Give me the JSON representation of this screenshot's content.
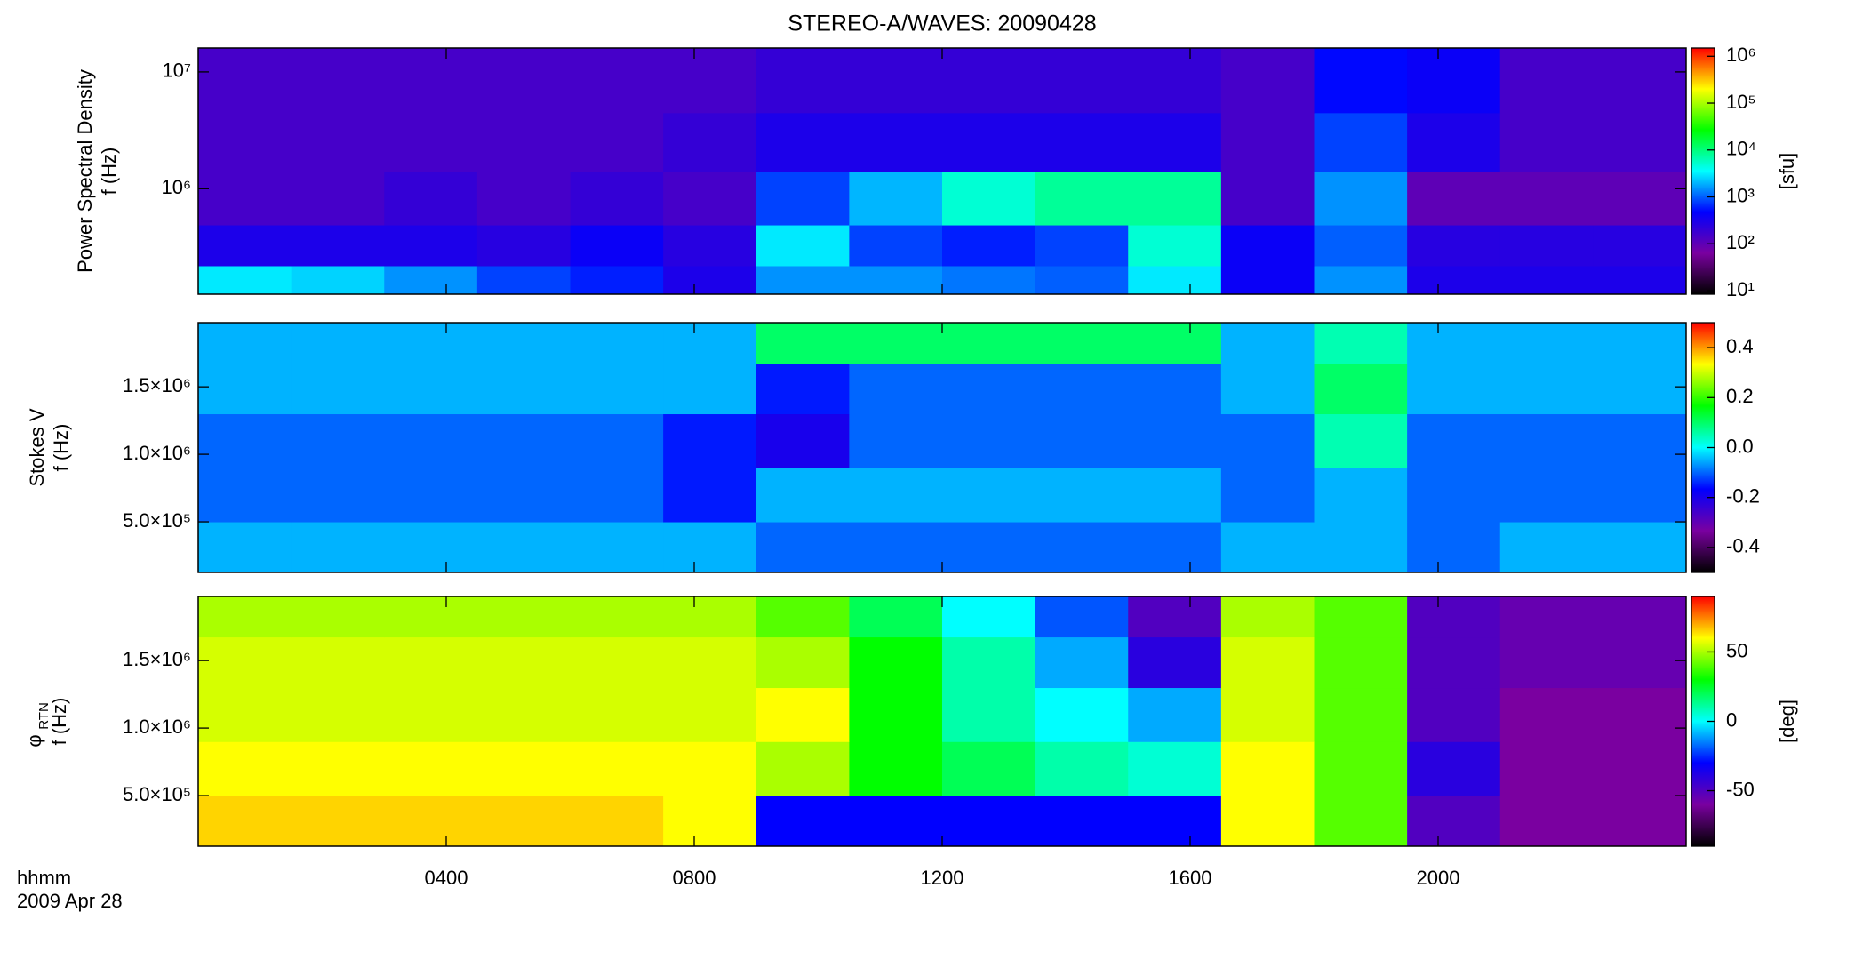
{
  "chart_data": [
    {
      "type": "heatmap",
      "title": "STEREO-A/WAVES: 20090428",
      "ylabel": "Power Spectral Density",
      "ylabel2": "f (Hz)",
      "colorbar_label": "[sfu]",
      "colormap": [
        "#000000",
        "#7a00a0",
        "#0000ff",
        "#00ffff",
        "#00ff00",
        "#ffff00",
        "#ff0000"
      ],
      "xlim": [
        0,
        24
      ],
      "xticks": [
        4,
        8,
        12,
        16,
        20
      ],
      "ylog": true,
      "ylim": [
        125000,
        16025000
      ],
      "yticks": [
        {
          "value": 1000000,
          "label": "10⁶"
        },
        {
          "value": 10000000,
          "label": "10⁷"
        }
      ],
      "zlog": true,
      "zlim": [
        8.4,
        1500000
      ],
      "zticks": [
        {
          "value": 10,
          "label": "10¹"
        },
        {
          "value": 100,
          "label": "10²"
        },
        {
          "value": 1000,
          "label": "10³"
        },
        {
          "value": 10000,
          "label": "10⁴"
        },
        {
          "value": 100000,
          "label": "10⁵"
        },
        {
          "value": 1000000,
          "label": "10⁶"
        }
      ],
      "x": [
        0.75,
        2.25,
        3.75,
        5.25,
        6.75,
        8.25,
        9.75,
        11.25,
        12.75,
        14.25,
        15.75,
        17.25,
        18.75,
        20.25,
        21.75,
        23.25
      ],
      "y": [
        160000,
        300000,
        800000,
        2500000,
        8000000
      ],
      "z": [
        [
          3000,
          2500,
          1500,
          800,
          600,
          300,
          1500,
          1500,
          1200,
          1000,
          3000,
          400,
          1500,
          300,
          300,
          300
        ],
        [
          300,
          300,
          300,
          250,
          400,
          250,
          3000,
          800,
          600,
          800,
          5000,
          400,
          1000,
          250,
          250,
          250
        ],
        [
          150,
          150,
          200,
          150,
          200,
          150,
          800,
          2000,
          5000,
          8000,
          8000,
          150,
          1500,
          100,
          100,
          100
        ],
        [
          150,
          150,
          150,
          150,
          150,
          200,
          300,
          300,
          300,
          300,
          300,
          150,
          800,
          300,
          150,
          150
        ],
        [
          150,
          150,
          150,
          150,
          150,
          150,
          200,
          200,
          200,
          200,
          200,
          150,
          500,
          400,
          150,
          150
        ]
      ]
    },
    {
      "type": "heatmap",
      "ylabel": "Stokes V",
      "ylabel2": "f (Hz)",
      "colormap": [
        "#000000",
        "#7a00a0",
        "#0000ff",
        "#00ffff",
        "#00ff00",
        "#ffff00",
        "#ff0000"
      ],
      "xlim": [
        0,
        24
      ],
      "xticks": [
        4,
        8,
        12,
        16,
        20
      ],
      "ylog": false,
      "ylim": [
        125000,
        1975000
      ],
      "yticks": [
        {
          "value": 500000,
          "label": "5.0×10⁵"
        },
        {
          "value": 1000000,
          "label": "1.0×10⁶"
        },
        {
          "value": 1500000,
          "label": "1.5×10⁶"
        }
      ],
      "zlog": false,
      "zlim": [
        -0.5,
        0.5
      ],
      "zticks": [
        -0.4,
        -0.2,
        {
          "value": 0,
          "label": "0.0"
        },
        0.2,
        0.4
      ],
      "x": [
        0.75,
        2.25,
        3.75,
        5.25,
        6.75,
        8.25,
        9.75,
        11.25,
        12.75,
        14.25,
        15.75,
        17.25,
        18.75,
        20.25,
        21.75,
        23.25
      ],
      "y": [
        300000,
        700000,
        1100000,
        1500000,
        1850000
      ],
      "z": [
        [
          -0.05,
          -0.05,
          -0.05,
          -0.05,
          -0.05,
          -0.05,
          -0.1,
          -0.1,
          -0.1,
          -0.1,
          -0.1,
          -0.05,
          -0.05,
          -0.1,
          -0.05,
          -0.05
        ],
        [
          -0.1,
          -0.1,
          -0.1,
          -0.1,
          -0.1,
          -0.15,
          -0.05,
          -0.05,
          -0.05,
          -0.05,
          -0.05,
          -0.1,
          -0.05,
          -0.1,
          -0.1,
          -0.1
        ],
        [
          -0.1,
          -0.1,
          -0.1,
          -0.1,
          -0.1,
          -0.15,
          -0.2,
          -0.1,
          -0.1,
          -0.1,
          -0.1,
          -0.1,
          0.05,
          -0.1,
          -0.1,
          -0.1
        ],
        [
          -0.05,
          -0.05,
          -0.05,
          -0.05,
          -0.05,
          -0.05,
          -0.15,
          -0.1,
          -0.1,
          -0.1,
          -0.1,
          -0.05,
          0.1,
          -0.05,
          -0.05,
          -0.05
        ],
        [
          -0.05,
          -0.05,
          -0.05,
          -0.05,
          -0.05,
          -0.05,
          0.1,
          0.1,
          0.1,
          0.1,
          0.1,
          -0.05,
          0.05,
          -0.05,
          -0.05,
          -0.05
        ]
      ]
    },
    {
      "type": "heatmap",
      "ylabel": "φ",
      "ylabel_sub": "RTN",
      "ylabel2": "f (Hz)",
      "colorbar_label": "[deg]",
      "xlabel": "hhmm",
      "date": "2009 Apr 28",
      "colormap": [
        "#000000",
        "#7a00a0",
        "#0000ff",
        "#00ffff",
        "#00ff00",
        "#ffff00",
        "#ff0000"
      ],
      "xlim": [
        0,
        24
      ],
      "xticks": [
        {
          "value": 4,
          "label": "0400"
        },
        {
          "value": 8,
          "label": "0800"
        },
        {
          "value": 12,
          "label": "1200"
        },
        {
          "value": 16,
          "label": "1600"
        },
        {
          "value": 20,
          "label": "2000"
        }
      ],
      "ylog": false,
      "ylim": [
        125000,
        1975000
      ],
      "yticks": [
        {
          "value": 500000,
          "label": "5.0×10⁵"
        },
        {
          "value": 1000000,
          "label": "1.0×10⁶"
        },
        {
          "value": 1500000,
          "label": "1.5×10⁶"
        }
      ],
      "zlog": false,
      "zlim": [
        -90,
        90
      ],
      "zticks": [
        -50,
        0,
        50
      ],
      "x": [
        0.75,
        2.25,
        3.75,
        5.25,
        6.75,
        8.25,
        9.75,
        11.25,
        12.75,
        14.25,
        15.75,
        17.25,
        18.75,
        20.25,
        21.75,
        23.25
      ],
      "y": [
        300000,
        700000,
        1100000,
        1500000,
        1850000
      ],
      "z": [
        [
          65,
          65,
          65,
          65,
          65,
          60,
          -30,
          -30,
          -30,
          -30,
          -30,
          60,
          40,
          -50,
          -60,
          -60
        ],
        [
          60,
          60,
          60,
          60,
          60,
          60,
          50,
          30,
          20,
          10,
          5,
          60,
          40,
          -40,
          -60,
          -60
        ],
        [
          55,
          55,
          55,
          55,
          55,
          55,
          60,
          30,
          10,
          0,
          -10,
          55,
          40,
          -50,
          -60,
          -60
        ],
        [
          55,
          55,
          55,
          55,
          55,
          55,
          50,
          30,
          10,
          -10,
          -40,
          55,
          40,
          -50,
          -55,
          -55
        ],
        [
          50,
          50,
          50,
          50,
          50,
          50,
          40,
          20,
          0,
          -20,
          -50,
          50,
          40,
          -50,
          -55,
          -55
        ]
      ]
    }
  ]
}
